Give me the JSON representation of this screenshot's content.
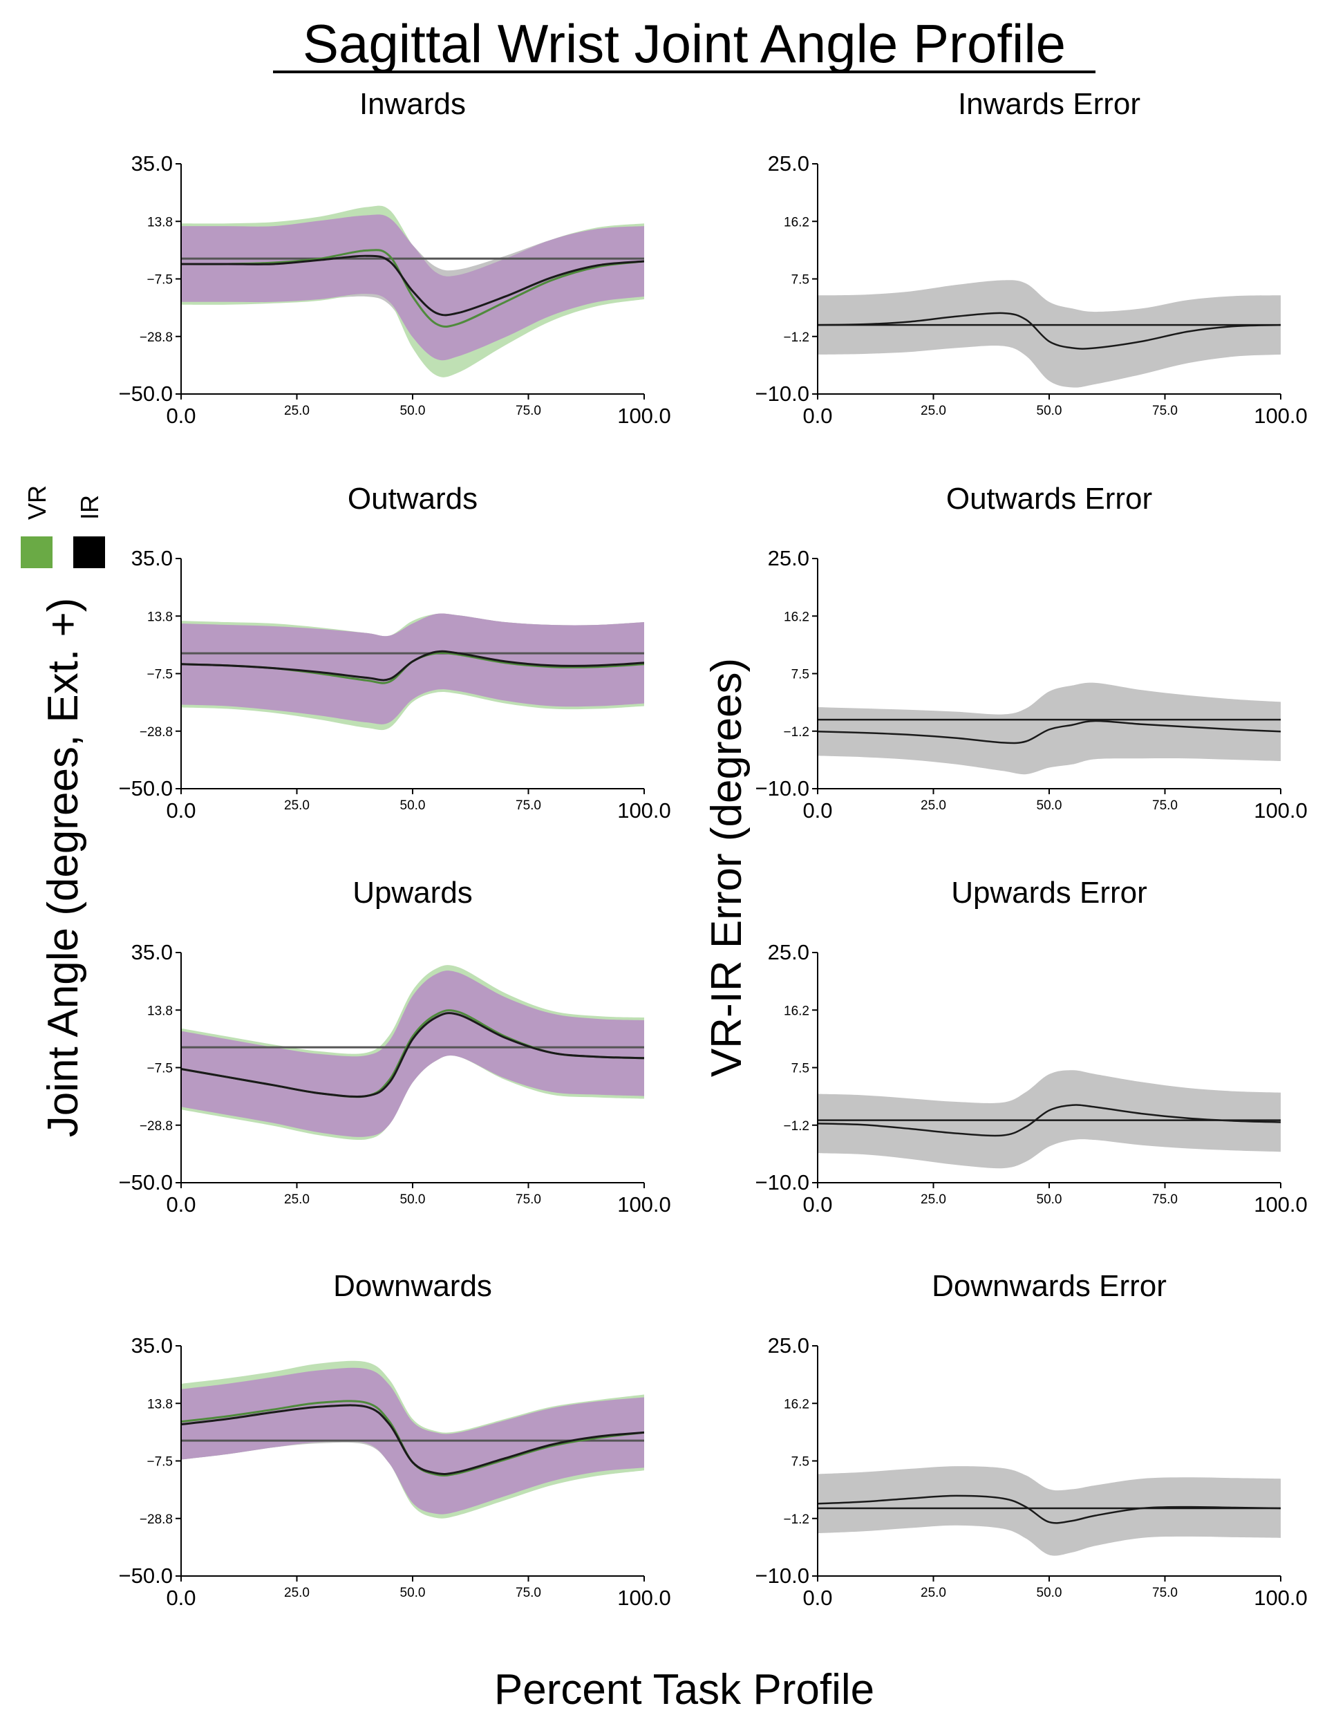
{
  "figure": {
    "title": "Sagittal Wrist Joint Angle Profile",
    "y_label_left": "Joint Angle (degrees, Ext. +)",
    "y_label_right": "VR-IR Error (degrees)",
    "x_label": "Percent Task Profile",
    "legend": [
      {
        "label": "VR",
        "color": "#6aaa45"
      },
      {
        "label": "IR",
        "color": "#000000"
      }
    ],
    "colors": {
      "overlap_band": "#b89ac2",
      "vr_band": "#bfe0b4",
      "ir_band": "#c4c4c4",
      "error_band": "#c4c4c4",
      "vr_line": "#4f8a3c",
      "ir_line": "#1a1a1a",
      "zero_line": "#555555"
    }
  },
  "chart_data": [
    {
      "type": "line",
      "title": "Inwards",
      "panel": "angle",
      "xlim": [
        0,
        100
      ],
      "ylim": [
        -50,
        35
      ],
      "x_ticks": [
        "0.0",
        "25.0",
        "50.0",
        "75.0",
        "100.0"
      ],
      "y_ticks": [
        "35.0",
        "13.8",
        "-7.5",
        "-28.8",
        "-50.0"
      ],
      "x": [
        0,
        10,
        20,
        30,
        40,
        45,
        50,
        55,
        60,
        70,
        80,
        90,
        100
      ],
      "reference_line": 0,
      "series": [
        {
          "name": "VR",
          "values": [
            -2,
            -2,
            -1.5,
            0,
            3,
            1,
            -14,
            -24,
            -24,
            -16,
            -8,
            -3,
            -1
          ],
          "sd": [
            15,
            15,
            15,
            15.5,
            16,
            17,
            19,
            19,
            18,
            16,
            15,
            14.5,
            14
          ]
        },
        {
          "name": "IR",
          "values": [
            -2,
            -2,
            -2,
            -0.5,
            1,
            -1,
            -12,
            -20,
            -20,
            -14,
            -7,
            -2.5,
            -1
          ],
          "sd": [
            14,
            14,
            14,
            14.5,
            15,
            16,
            17,
            17,
            16,
            15,
            14,
            13.5,
            13
          ]
        }
      ]
    },
    {
      "type": "line",
      "title": "Inwards Error",
      "panel": "error",
      "xlim": [
        0,
        100
      ],
      "ylim": [
        -10,
        25
      ],
      "x_ticks": [
        "0.0",
        "25.0",
        "50.0",
        "75.0",
        "100.0"
      ],
      "y_ticks": [
        "25.0",
        "16.2",
        "7.5",
        "-1.2",
        "-10.0"
      ],
      "x": [
        0,
        10,
        20,
        30,
        40,
        45,
        50,
        55,
        60,
        70,
        80,
        90,
        100
      ],
      "reference_line": 0.5,
      "series": [
        {
          "name": "Error",
          "values": [
            0.5,
            0.6,
            1,
            1.8,
            2.3,
            1.3,
            -2,
            -3,
            -3,
            -2,
            -0.5,
            0.3,
            0.5
          ],
          "sd": [
            4.5,
            4.5,
            4.6,
            4.8,
            5,
            5.5,
            6,
            6,
            5.5,
            5,
            4.8,
            4.6,
            4.5
          ]
        }
      ]
    },
    {
      "type": "line",
      "title": "Outwards",
      "panel": "angle",
      "xlim": [
        0,
        100
      ],
      "ylim": [
        -50,
        35
      ],
      "x_ticks": [
        "0.0",
        "25.0",
        "50.0",
        "75.0",
        "100.0"
      ],
      "y_ticks": [
        "35.0",
        "13.8",
        "-7.5",
        "-28.8",
        "-50.0"
      ],
      "x": [
        0,
        10,
        20,
        30,
        40,
        45,
        50,
        55,
        60,
        70,
        80,
        90,
        100
      ],
      "reference_line": 0,
      "series": [
        {
          "name": "VR",
          "values": [
            -4,
            -4.5,
            -5.5,
            -7.5,
            -10,
            -10.5,
            -3,
            0,
            -0.5,
            -3.5,
            -5,
            -5,
            -4
          ],
          "sd": [
            16,
            16,
            16.5,
            17,
            17.5,
            17,
            15,
            14.5,
            14.5,
            15,
            15.5,
            15.5,
            15.5
          ]
        },
        {
          "name": "IR",
          "values": [
            -4,
            -4.5,
            -5.5,
            -7,
            -9,
            -9.5,
            -3,
            0.5,
            0,
            -3,
            -4.5,
            -4.5,
            -3.5
          ],
          "sd": [
            15,
            15,
            15.5,
            16,
            16.5,
            16,
            14,
            14,
            14,
            14.5,
            15,
            15,
            15
          ]
        }
      ]
    },
    {
      "type": "line",
      "title": "Outwards Error",
      "panel": "error",
      "xlim": [
        0,
        100
      ],
      "ylim": [
        -10,
        25
      ],
      "x_ticks": [
        "0.0",
        "25.0",
        "50.0",
        "75.0",
        "100.0"
      ],
      "y_ticks": [
        "25.0",
        "16.2",
        "7.5",
        "-1.2",
        "-10.0"
      ],
      "x": [
        0,
        10,
        20,
        30,
        40,
        45,
        50,
        55,
        60,
        70,
        80,
        90,
        100
      ],
      "reference_line": 0.5,
      "series": [
        {
          "name": "Error",
          "values": [
            -1.3,
            -1.5,
            -1.8,
            -2.3,
            -3,
            -2.8,
            -1,
            -0.3,
            0.3,
            -0.2,
            -0.6,
            -1,
            -1.3
          ],
          "sd": [
            3.7,
            3.7,
            3.8,
            4,
            4.3,
            5,
            5.8,
            6,
            5.8,
            5.2,
            4.8,
            4.6,
            4.5
          ]
        }
      ]
    },
    {
      "type": "line",
      "title": "Upwards",
      "panel": "angle",
      "xlim": [
        0,
        100
      ],
      "ylim": [
        -50,
        35
      ],
      "x_ticks": [
        "0.0",
        "25.0",
        "50.0",
        "75.0",
        "100.0"
      ],
      "y_ticks": [
        "35.0",
        "13.8",
        "-7.5",
        "-28.8",
        "-50.0"
      ],
      "x": [
        0,
        10,
        20,
        30,
        40,
        45,
        50,
        55,
        60,
        70,
        80,
        90,
        100
      ],
      "reference_line": 0,
      "series": [
        {
          "name": "VR",
          "values": [
            -8,
            -11,
            -14,
            -17,
            -18,
            -12,
            4,
            12,
            13,
            4,
            -2,
            -3.5,
            -4
          ],
          "sd": [
            15,
            15,
            15,
            15.5,
            16,
            16.5,
            17,
            17,
            16.5,
            16,
            15.5,
            15,
            15
          ]
        },
        {
          "name": "IR",
          "values": [
            -8,
            -11,
            -14,
            -17,
            -18,
            -13,
            3,
            11,
            12,
            3.5,
            -2,
            -3.5,
            -4
          ],
          "sd": [
            14,
            14,
            14,
            14.5,
            15,
            15.5,
            16,
            16,
            15.5,
            15,
            14.5,
            14,
            14
          ]
        }
      ]
    },
    {
      "type": "line",
      "title": "Upwards Error",
      "panel": "error",
      "xlim": [
        0,
        100
      ],
      "ylim": [
        -10,
        25
      ],
      "x_ticks": [
        "0.0",
        "25.0",
        "50.0",
        "75.0",
        "100.0"
      ],
      "y_ticks": [
        "25.0",
        "16.2",
        "7.5",
        "-1.2",
        "-10.0"
      ],
      "x": [
        0,
        10,
        20,
        30,
        40,
        45,
        50,
        55,
        60,
        70,
        80,
        90,
        100
      ],
      "reference_line": -0.5,
      "series": [
        {
          "name": "Error",
          "values": [
            -1,
            -1.2,
            -1.8,
            -2.5,
            -2.8,
            -1.5,
            1,
            1.8,
            1.5,
            0.5,
            -0.2,
            -0.6,
            -0.8
          ],
          "sd": [
            4.5,
            4.5,
            4.6,
            4.8,
            5,
            5.3,
            5.5,
            5.3,
            5,
            4.8,
            4.6,
            4.5,
            4.5
          ]
        }
      ]
    },
    {
      "type": "line",
      "title": "Downwards",
      "panel": "angle",
      "xlim": [
        0,
        100
      ],
      "ylim": [
        -50,
        35
      ],
      "x_ticks": [
        "0.0",
        "25.0",
        "50.0",
        "75.0",
        "100.0"
      ],
      "y_ticks": [
        "35.0",
        "13.8",
        "-7.5",
        "-28.8",
        "-50.0"
      ],
      "x": [
        0,
        10,
        20,
        30,
        40,
        45,
        50,
        55,
        60,
        70,
        80,
        90,
        100
      ],
      "reference_line": 0,
      "series": [
        {
          "name": "VR",
          "values": [
            7,
            9,
            11.5,
            14,
            14,
            7,
            -8,
            -12.5,
            -12,
            -7,
            -2,
            1,
            3
          ],
          "sd": [
            14,
            14,
            14,
            14.5,
            15,
            15.5,
            16,
            16,
            15.5,
            15,
            14.5,
            14,
            14
          ]
        },
        {
          "name": "IR",
          "values": [
            6,
            8,
            10.5,
            12.5,
            12.5,
            6,
            -8,
            -12,
            -11.5,
            -6.5,
            -1.5,
            1.5,
            3
          ],
          "sd": [
            13,
            13,
            13,
            13.5,
            14,
            14.5,
            15,
            15,
            14.5,
            14,
            13.5,
            13,
            13
          ]
        }
      ]
    },
    {
      "type": "line",
      "title": "Downwards Error",
      "panel": "error",
      "xlim": [
        0,
        100
      ],
      "ylim": [
        -10,
        25
      ],
      "x_ticks": [
        "0.0",
        "25.0",
        "50.0",
        "75.0",
        "100.0"
      ],
      "y_ticks": [
        "25.0",
        "16.2",
        "7.5",
        "-1.2",
        "-10.0"
      ],
      "x": [
        0,
        10,
        20,
        30,
        40,
        45,
        50,
        55,
        60,
        70,
        80,
        90,
        100
      ],
      "reference_line": 0.3,
      "series": [
        {
          "name": "Error",
          "values": [
            1,
            1.3,
            1.8,
            2.2,
            1.8,
            0.5,
            -1.8,
            -1.6,
            -0.8,
            0.3,
            0.5,
            0.4,
            0.3
          ],
          "sd": [
            4.5,
            4.5,
            4.5,
            4.5,
            4.6,
            4.8,
            5,
            4.8,
            4.6,
            4.5,
            4.5,
            4.5,
            4.5
          ]
        }
      ]
    }
  ]
}
